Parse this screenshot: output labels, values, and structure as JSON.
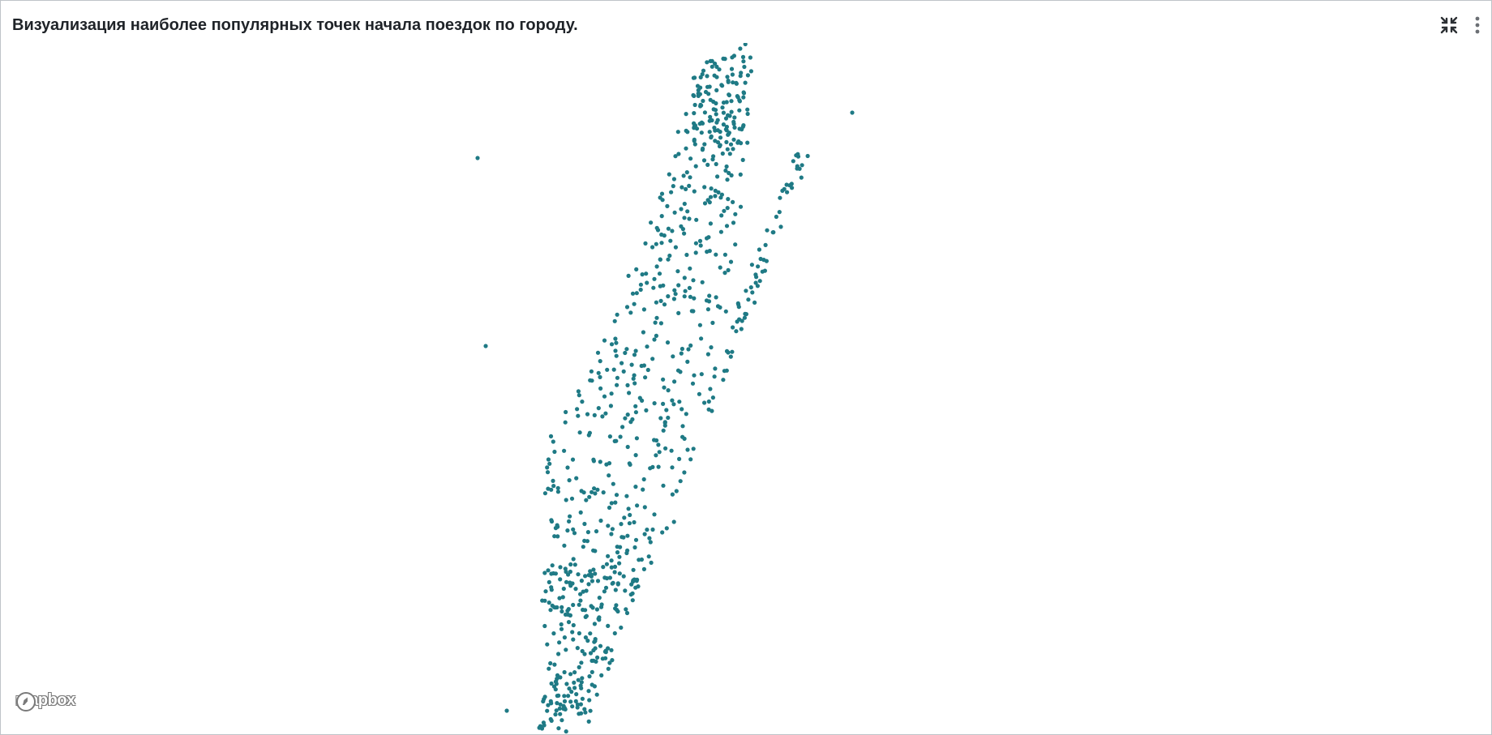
{
  "panel": {
    "title": "Визуализация наиболее популярных точек начала поездок по городу."
  },
  "actions": {
    "collapse_icon": "collapse-icon",
    "menu_icon": "more-vertical-icon"
  },
  "map": {
    "attribution_logo": "mapbox",
    "point_color": "#1f7a85"
  }
}
